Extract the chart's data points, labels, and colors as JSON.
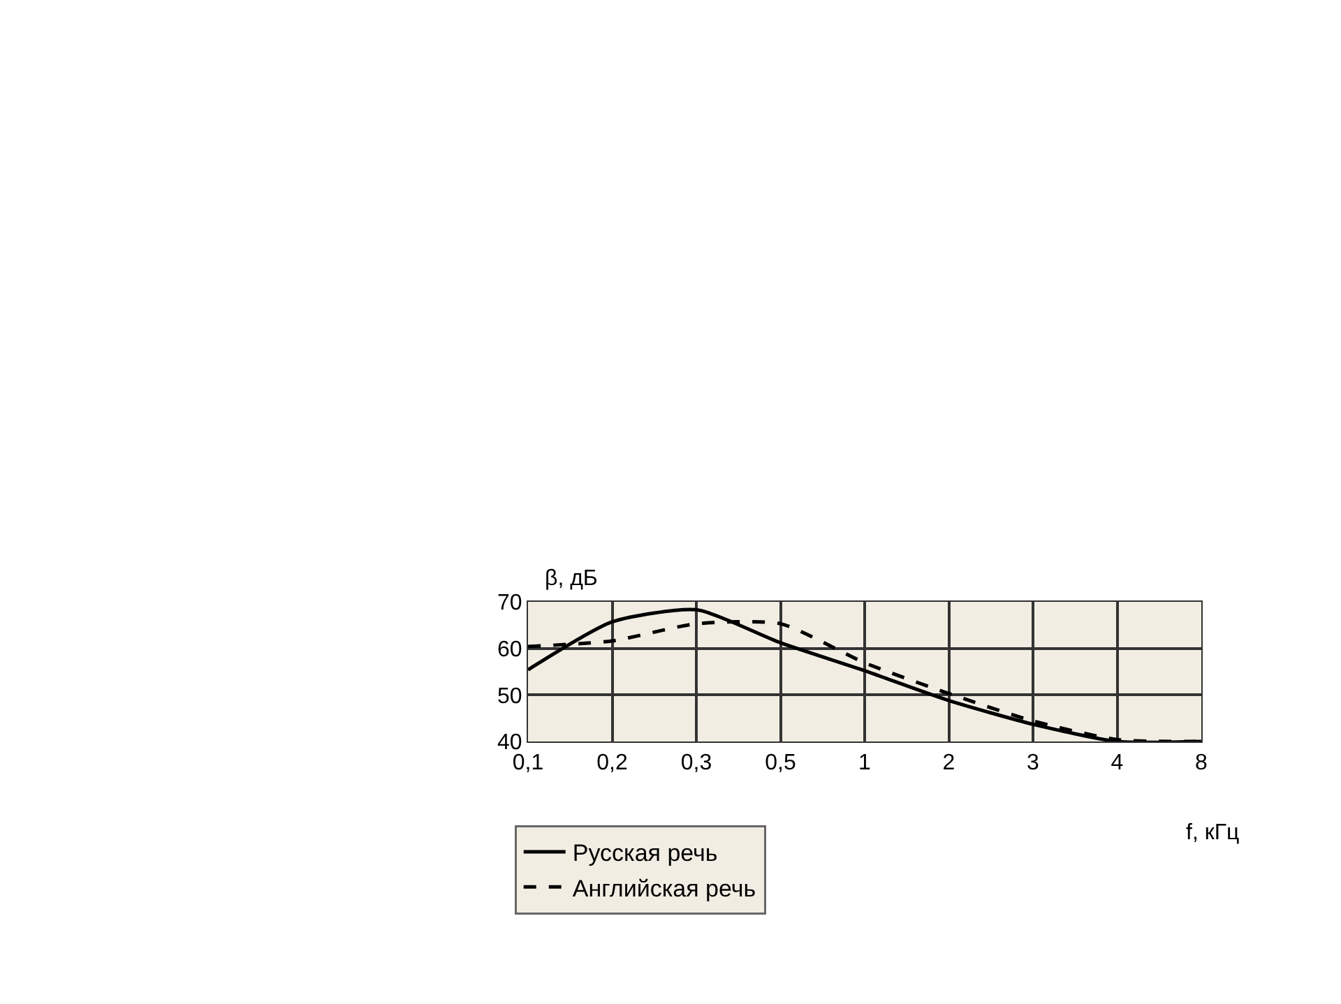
{
  "chart_data": {
    "type": "line",
    "ylabel": "β, дБ",
    "xlabel": "f, кГц",
    "categories": [
      "0,1",
      "0,2",
      "0,3",
      "0,5",
      "1",
      "2",
      "3",
      "4",
      "8"
    ],
    "ylim": [
      40,
      70
    ],
    "yticks": [
      40,
      50,
      60,
      70
    ],
    "grid": true,
    "legend": "bottom left",
    "series": [
      {
        "name": "Русская речь",
        "color": "#000000",
        "line_style": "solid",
        "values": [
          55.4,
          65.7,
          68.3,
          61.2,
          55.2,
          48.8,
          43.7,
          40,
          40
        ]
      },
      {
        "name": "Английская речь",
        "color": "#000000",
        "line_style": "dashed",
        "values": [
          60.4,
          61.6,
          65.3,
          65.3,
          56.9,
          50.3,
          44.4,
          40.4,
          40
        ]
      }
    ]
  }
}
